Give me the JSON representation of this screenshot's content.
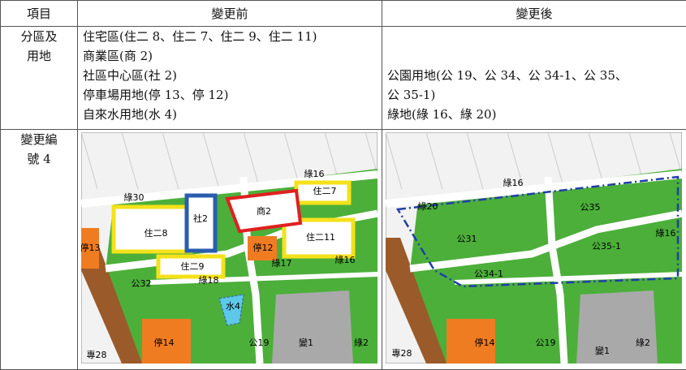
{
  "table": {
    "header": [
      "項目",
      "變更前",
      "變更後"
    ],
    "rows": [
      {
        "item": [
          "分區及",
          "用地"
        ],
        "before": [
          "住宅區(住二 8、住二 7、住二 9、住二 11)",
          "商業區(商 2)",
          "社區中心區(社 2)",
          "停車場用地(停 13、停 12)",
          "自來水用地(水 4)"
        ],
        "after": [
          "公園用地(公 19、公 34、公 34-1、公 35、",
          "公 35-1)",
          "綠地(綠 16、綠 20)"
        ]
      },
      {
        "item": [
          "變更編",
          "號 4"
        ],
        "before_map": [
          "綠16",
          "住二7",
          "商2",
          "社2",
          "住二8",
          "住二11",
          "停12",
          "停13",
          "住二9",
          "綠17",
          "綠16",
          "公32",
          "綠18",
          "水4",
          "停14",
          "公19",
          "變1",
          "綠2",
          "專28",
          "綠30"
        ],
        "after_map": [
          "綠16",
          "綠20",
          "公35",
          "公31",
          "綠16",
          "公35-1",
          "公34-1",
          "停14",
          "公19",
          "變1",
          "綠2",
          "專28"
        ]
      }
    ]
  }
}
